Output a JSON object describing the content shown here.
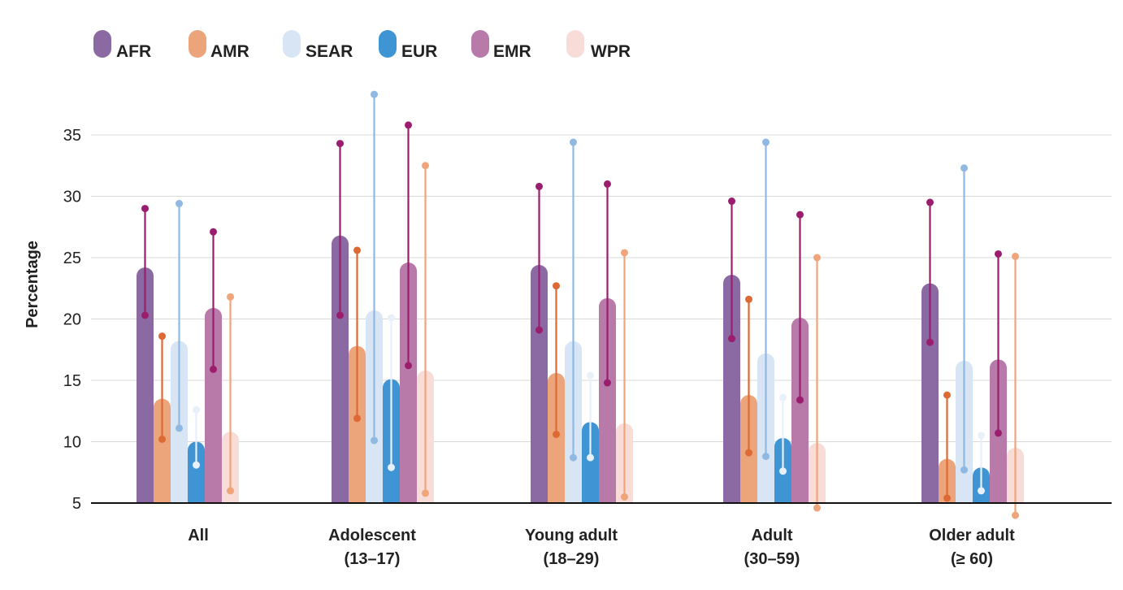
{
  "chart_data": {
    "type": "bar",
    "ylabel": "Percentage",
    "xlabel": "",
    "ylim": [
      5,
      38.5
    ],
    "yticks": [
      "5",
      "10",
      "15",
      "20",
      "25",
      "30",
      "35"
    ],
    "grid": true,
    "legend_position": "top-left",
    "categories": [
      {
        "line1": "All",
        "line2": ""
      },
      {
        "line1": "Adolescent",
        "line2": "(13–17)"
      },
      {
        "line1": "Young adult",
        "line2": "(18–29)"
      },
      {
        "line1": "Adult",
        "line2": "(30–59)"
      },
      {
        "line1": "Older adult",
        "line2": "(≥ 60)"
      }
    ],
    "series": [
      {
        "name": "AFR",
        "color": "#8b6aa4",
        "whisker_color": "#9b1e6e",
        "values": [
          24.2,
          26.8,
          24.4,
          23.6,
          22.9
        ],
        "lower": [
          20.3,
          20.3,
          19.1,
          18.4,
          18.1
        ],
        "upper": [
          29.0,
          34.3,
          30.8,
          29.6,
          29.5
        ]
      },
      {
        "name": "AMR",
        "color": "#eca57a",
        "whisker_color": "#dd6a35",
        "values": [
          13.5,
          17.8,
          15.6,
          13.8,
          8.6
        ],
        "lower": [
          10.2,
          11.9,
          10.6,
          9.1,
          5.4
        ],
        "upper": [
          18.6,
          25.6,
          22.7,
          21.6,
          13.8
        ]
      },
      {
        "name": "SEAR",
        "color": "#d8e5f5",
        "whisker_color": "#8fb8e2",
        "values": [
          18.2,
          20.7,
          18.2,
          17.2,
          16.6
        ],
        "lower": [
          11.1,
          10.1,
          8.7,
          8.8,
          7.7
        ],
        "upper": [
          29.4,
          38.3,
          34.4,
          34.4,
          32.3
        ]
      },
      {
        "name": "EUR",
        "color": "#3f95d4",
        "whisker_color": "#e8f1fa",
        "values": [
          10.0,
          15.1,
          11.6,
          10.3,
          7.9
        ],
        "lower": [
          8.1,
          7.9,
          8.7,
          7.6,
          6.0
        ],
        "upper": [
          12.6,
          20.1,
          15.4,
          13.6,
          10.5
        ]
      },
      {
        "name": "EMR",
        "color": "#b77aa9",
        "whisker_color": "#9b1e6e",
        "values": [
          20.9,
          24.6,
          21.7,
          20.1,
          16.7
        ],
        "lower": [
          15.9,
          16.2,
          14.8,
          13.4,
          10.7
        ],
        "upper": [
          27.1,
          35.8,
          31.0,
          28.5,
          25.3
        ]
      },
      {
        "name": "WPR",
        "color": "#f8dcd8",
        "whisker_color": "#f0a47a",
        "values": [
          10.8,
          15.8,
          11.5,
          9.9,
          9.5
        ],
        "lower": [
          6.0,
          5.8,
          5.5,
          4.6,
          4.0
        ],
        "upper": [
          21.8,
          32.5,
          25.4,
          25.0,
          25.1
        ]
      }
    ]
  }
}
